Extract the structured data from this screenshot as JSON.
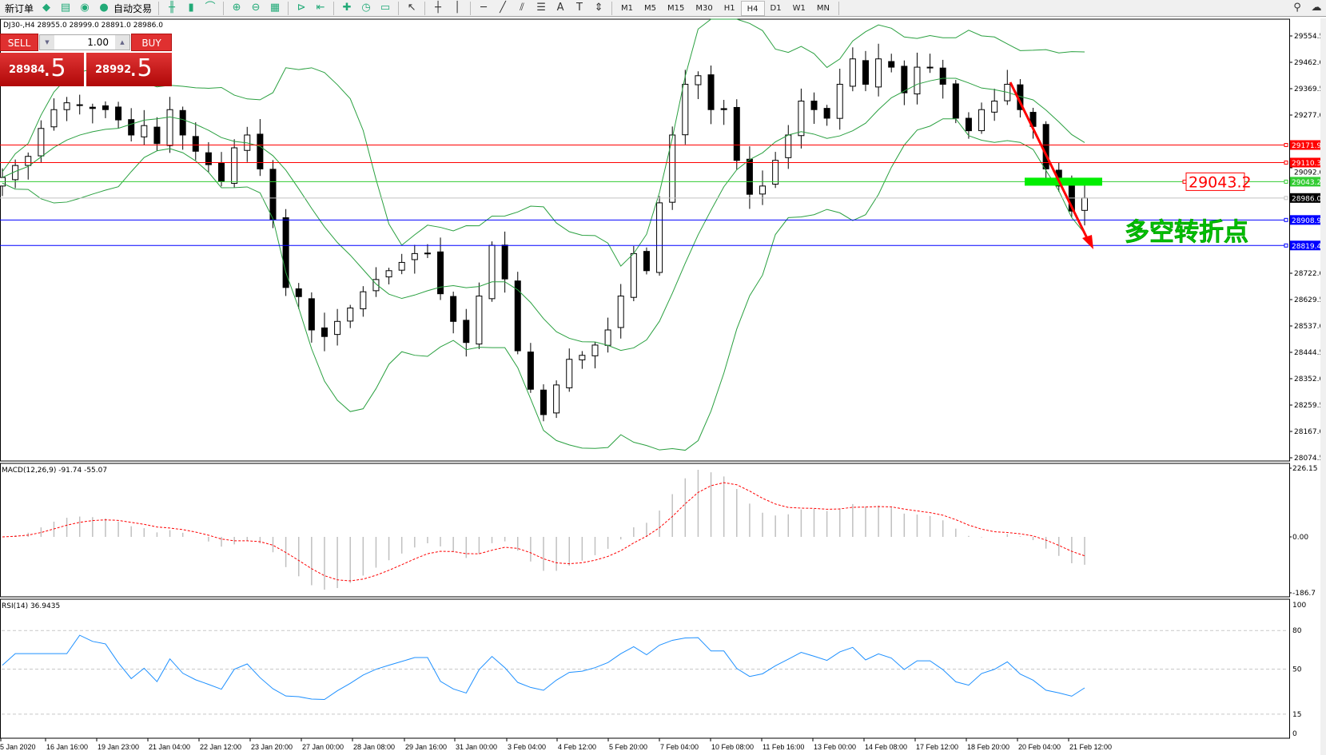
{
  "toolbar": {
    "new_order": "新订单",
    "auto_trading": "自动交易",
    "timeframes": [
      "M1",
      "M5",
      "M15",
      "M30",
      "H1",
      "H4",
      "D1",
      "W1",
      "MN"
    ],
    "active_timeframe": "H4",
    "icons": [
      "gold-icon",
      "printer-icon",
      "signal-icon",
      "auto-trading-icon",
      "bar-chart-icon",
      "candlestick-icon",
      "line-chart-icon",
      "zoom-in-icon",
      "zoom-out-icon",
      "tile-windows-icon",
      "auto-scroll-icon",
      "chart-shift-icon",
      "indicators-icon",
      "periods-icon",
      "templates-icon",
      "cursor-icon",
      "crosshair-icon",
      "vertical-line-icon",
      "horizontal-line-icon",
      "trendline-icon",
      "fibonacci-fan-icon",
      "fibonacci-icon",
      "text-icon",
      "text-label-icon",
      "arrows-icon",
      "search-icon",
      "chat-icon"
    ]
  },
  "chart": {
    "header": "DJ30-,H4  28955.0 28999.0 28891.0 28986.0",
    "trade_panel": {
      "sell": "SELL",
      "buy": "BUY",
      "lot": "1.00",
      "sell_big": "28984",
      "sell_frac": ".5",
      "buy_big": "28992",
      "buy_frac": ".5"
    },
    "price_ticks": [
      "29554.5",
      "29462.0",
      "29369.5",
      "29277.0",
      "29092.0",
      "28722.0",
      "28629.5",
      "28537.0",
      "28444.5",
      "28352.0",
      "28259.5",
      "28167.0",
      "28074.5"
    ],
    "hlines": [
      {
        "price": 29171.9,
        "label": "29171.9",
        "color": "#ff0000"
      },
      {
        "price": 29110.3,
        "label": "29110.3",
        "color": "#ff0000"
      },
      {
        "price": 29043.2,
        "label": "29043.2",
        "color": "#33cc33"
      },
      {
        "price": 28986.0,
        "label": "28986.0",
        "color": "#000000"
      },
      {
        "price": 28908.9,
        "label": "28908.9",
        "color": "#0000ff"
      },
      {
        "price": 28819.4,
        "label": "28819.4",
        "color": "#0000ff"
      }
    ],
    "annotation_price": "29043.2",
    "annotation_text": "多空转折点",
    "macd": {
      "label": "MACD(12,26,9) -91.74 -55.07",
      "ticks": [
        "226.15",
        "0.00",
        "-186.7"
      ]
    },
    "rsi": {
      "label": "RSI(14) 36.9435",
      "ticks": [
        "100",
        "80",
        "50",
        "15",
        "0"
      ]
    },
    "time_labels": [
      "5 Jan 2020",
      "16 Jan 16:00",
      "19 Jan 23:00",
      "21 Jan 04:00",
      "22 Jan 12:00",
      "23 Jan 20:00",
      "27 Jan 00:00",
      "28 Jan 08:00",
      "29 Jan 16:00",
      "31 Jan 00:00",
      "3 Feb 04:00",
      "4 Feb 12:00",
      "5 Feb 20:00",
      "7 Feb 04:00",
      "10 Feb 08:00",
      "11 Feb 16:00",
      "13 Feb 00:00",
      "14 Feb 08:00",
      "17 Feb 12:00",
      "18 Feb 20:00",
      "20 Feb 04:00",
      "21 Feb 12:00"
    ],
    "colors": {
      "bands": "#2aa040",
      "macd_signal": "#ff0000",
      "macd_hist": "#c0c0c0",
      "rsi": "#1e90ff",
      "arrow": "#ff0000",
      "zone": "#00ee00",
      "annotation": "#00dd00"
    }
  },
  "chart_data": {
    "type": "candlestick",
    "symbol": "DJ30-",
    "timeframe": "H4",
    "ylim": [
      28074.5,
      29554.5
    ],
    "closes": [
      29058,
      29100,
      29132,
      29230,
      29296,
      29320,
      29311,
      29300,
      29296,
      29260,
      29207,
      29240,
      29177,
      29296,
      29207,
      29150,
      29103,
      29043,
      29162,
      29207,
      29088,
      28910,
      28672,
      28640,
      28523,
      28500,
      28553,
      28600,
      28657,
      28700,
      28731,
      28760,
      28791,
      28791,
      28650,
      28553,
      28479,
      28642,
      28820,
      28702,
      28450,
      28315,
      28226,
      28330,
      28420,
      28434,
      28470,
      28523,
      28642,
      28791,
      28731,
      28969,
      29207,
      29385,
      29415,
      29296,
      29296,
      29118,
      28999,
      29028,
      29118,
      29207,
      29326,
      29296,
      29266,
      29385,
      29474,
      29385,
      29474,
      29445,
      29355,
      29445,
      29445,
      29385,
      29266,
      29222,
      29296,
      29326,
      29385,
      29296,
      29237,
      29088,
      29028,
      28940,
      28986
    ]
  }
}
